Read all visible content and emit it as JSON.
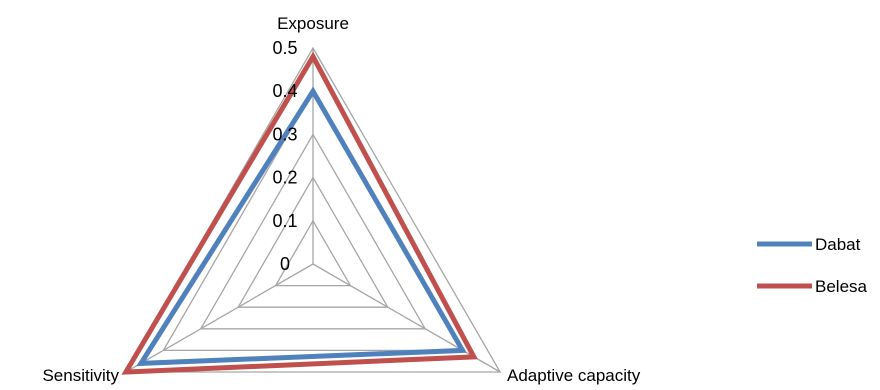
{
  "chart_data": {
    "type": "radar",
    "axes": [
      "Exposure",
      "Adaptive capacity",
      "Sensitivity"
    ],
    "ticks": [
      "0",
      "0.1",
      "0.2",
      "0.3",
      "0.4",
      "0.5"
    ],
    "rmax": 0.5,
    "grid": true,
    "legend_position": "right",
    "series": [
      {
        "name": "Dabat",
        "values": [
          0.4,
          0.4,
          0.46
        ],
        "color": "#4f81bd"
      },
      {
        "name": "Belesa",
        "values": [
          0.48,
          0.43,
          0.5
        ],
        "color": "#c0504d"
      }
    ]
  }
}
